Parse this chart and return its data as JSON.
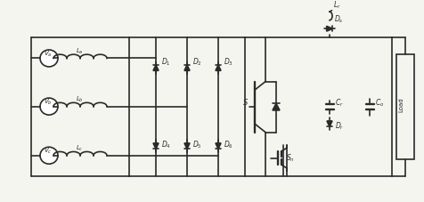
{
  "bg_color": "#f5f5f0",
  "line_color": "#2a2a2a",
  "lw": 1.2,
  "fig_w": 4.76,
  "fig_h": 2.27,
  "labels": {
    "Va": "$V_a$",
    "Vb": "$V_b$",
    "Vc": "$V_c$",
    "La": "$L_a$",
    "Lb": "$L_b$",
    "Lc": "$L_c$",
    "D1": "$D_1$",
    "D2": "$D_2$",
    "D3": "$D_3$",
    "D4": "$D_4$",
    "D5": "$D_5$",
    "D6": "$D_6$",
    "Ds": "$D_s$",
    "Lr": "$L_r$",
    "Cf": "$C_r$",
    "Dr": "$D_r$",
    "Co": "$C_o$",
    "Load": "Load",
    "S": "$S$",
    "Sn": "$S_n$"
  }
}
